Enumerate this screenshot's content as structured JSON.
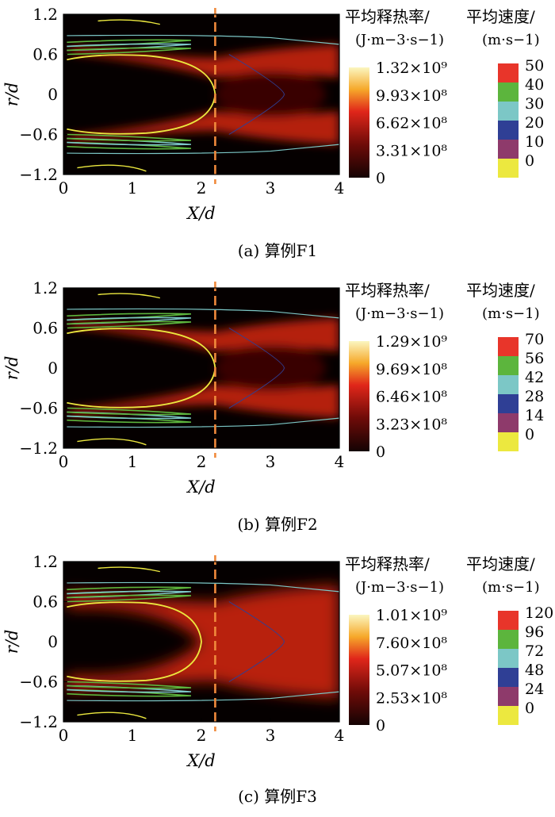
{
  "chart_data": [
    {
      "type": "heatmap",
      "caption": "(a) 算例F1",
      "xlabel": "X/d",
      "ylabel": "r/d",
      "xlim": [
        0,
        4
      ],
      "ylim": [
        -1.2,
        1.2
      ],
      "x_ticks": [
        "0",
        "1",
        "2",
        "3",
        "4"
      ],
      "y_ticks": [
        "1.2",
        "0.6",
        "0",
        "-0.6",
        "-1.2"
      ],
      "marker_line_x": 2.2,
      "heat_colorbar": {
        "title": "平均释热率/",
        "unit": "(J·m−3·s−1)",
        "labels": [
          "1.32×10⁹",
          "9.93×10⁸",
          "6.62×10⁸",
          "3.31×10⁸",
          "0"
        ]
      },
      "velocity_legend": {
        "title": "平均速度/",
        "unit": "(m·s−1)",
        "levels": [
          {
            "label": "50",
            "color": "#e8352a"
          },
          {
            "label": "40",
            "color": "#5cb53d"
          },
          {
            "label": "30",
            "color": "#7cc7c6"
          },
          {
            "label": "20",
            "color": "#2f3f95"
          },
          {
            "label": "10",
            "color": "#8e3a6b"
          },
          {
            "label": "0",
            "color": "#ece83f"
          }
        ]
      }
    },
    {
      "type": "heatmap",
      "caption": "(b) 算例F2",
      "xlabel": "X/d",
      "ylabel": "r/d",
      "xlim": [
        0,
        4
      ],
      "ylim": [
        -1.2,
        1.2
      ],
      "x_ticks": [
        "0",
        "1",
        "2",
        "3",
        "4"
      ],
      "y_ticks": [
        "1.2",
        "0.6",
        "0",
        "-0.6",
        "-1.2"
      ],
      "marker_line_x": 2.2,
      "heat_colorbar": {
        "title": "平均释热率/",
        "unit": "(J·m−3·s−1)",
        "labels": [
          "1.29×10⁹",
          "9.69×10⁸",
          "6.46×10⁸",
          "3.23×10⁸",
          "0"
        ]
      },
      "velocity_legend": {
        "title": "平均速度/",
        "unit": "(m·s−1)",
        "levels": [
          {
            "label": "70",
            "color": "#e8352a"
          },
          {
            "label": "56",
            "color": "#5cb53d"
          },
          {
            "label": "42",
            "color": "#7cc7c6"
          },
          {
            "label": "28",
            "color": "#2f3f95"
          },
          {
            "label": "14",
            "color": "#8e3a6b"
          },
          {
            "label": "0",
            "color": "#ece83f"
          }
        ]
      }
    },
    {
      "type": "heatmap",
      "caption": "(c) 算例F3",
      "xlabel": "X/d",
      "ylabel": "r/d",
      "xlim": [
        0,
        4
      ],
      "ylim": [
        -1.2,
        1.2
      ],
      "x_ticks": [
        "0",
        "1",
        "2",
        "3",
        "4"
      ],
      "y_ticks": [
        "1.2",
        "0.6",
        "0",
        "-0.6",
        "-1.2"
      ],
      "marker_line_x": 2.2,
      "heat_colorbar": {
        "title": "平均释热率/",
        "unit": "(J·m−3·s−1)",
        "labels": [
          "1.01×10⁹",
          "7.60×10⁸",
          "5.07×10⁸",
          "2.53×10⁸",
          "0"
        ]
      },
      "velocity_legend": {
        "title": "平均速度/",
        "unit": "(m·s−1)",
        "levels": [
          {
            "label": "120",
            "color": "#e8352a"
          },
          {
            "label": "96",
            "color": "#5cb53d"
          },
          {
            "label": "72",
            "color": "#7cc7c6"
          },
          {
            "label": "48",
            "color": "#2f3f95"
          },
          {
            "label": "24",
            "color": "#8e3a6b"
          },
          {
            "label": "0",
            "color": "#ece83f"
          }
        ]
      }
    }
  ]
}
